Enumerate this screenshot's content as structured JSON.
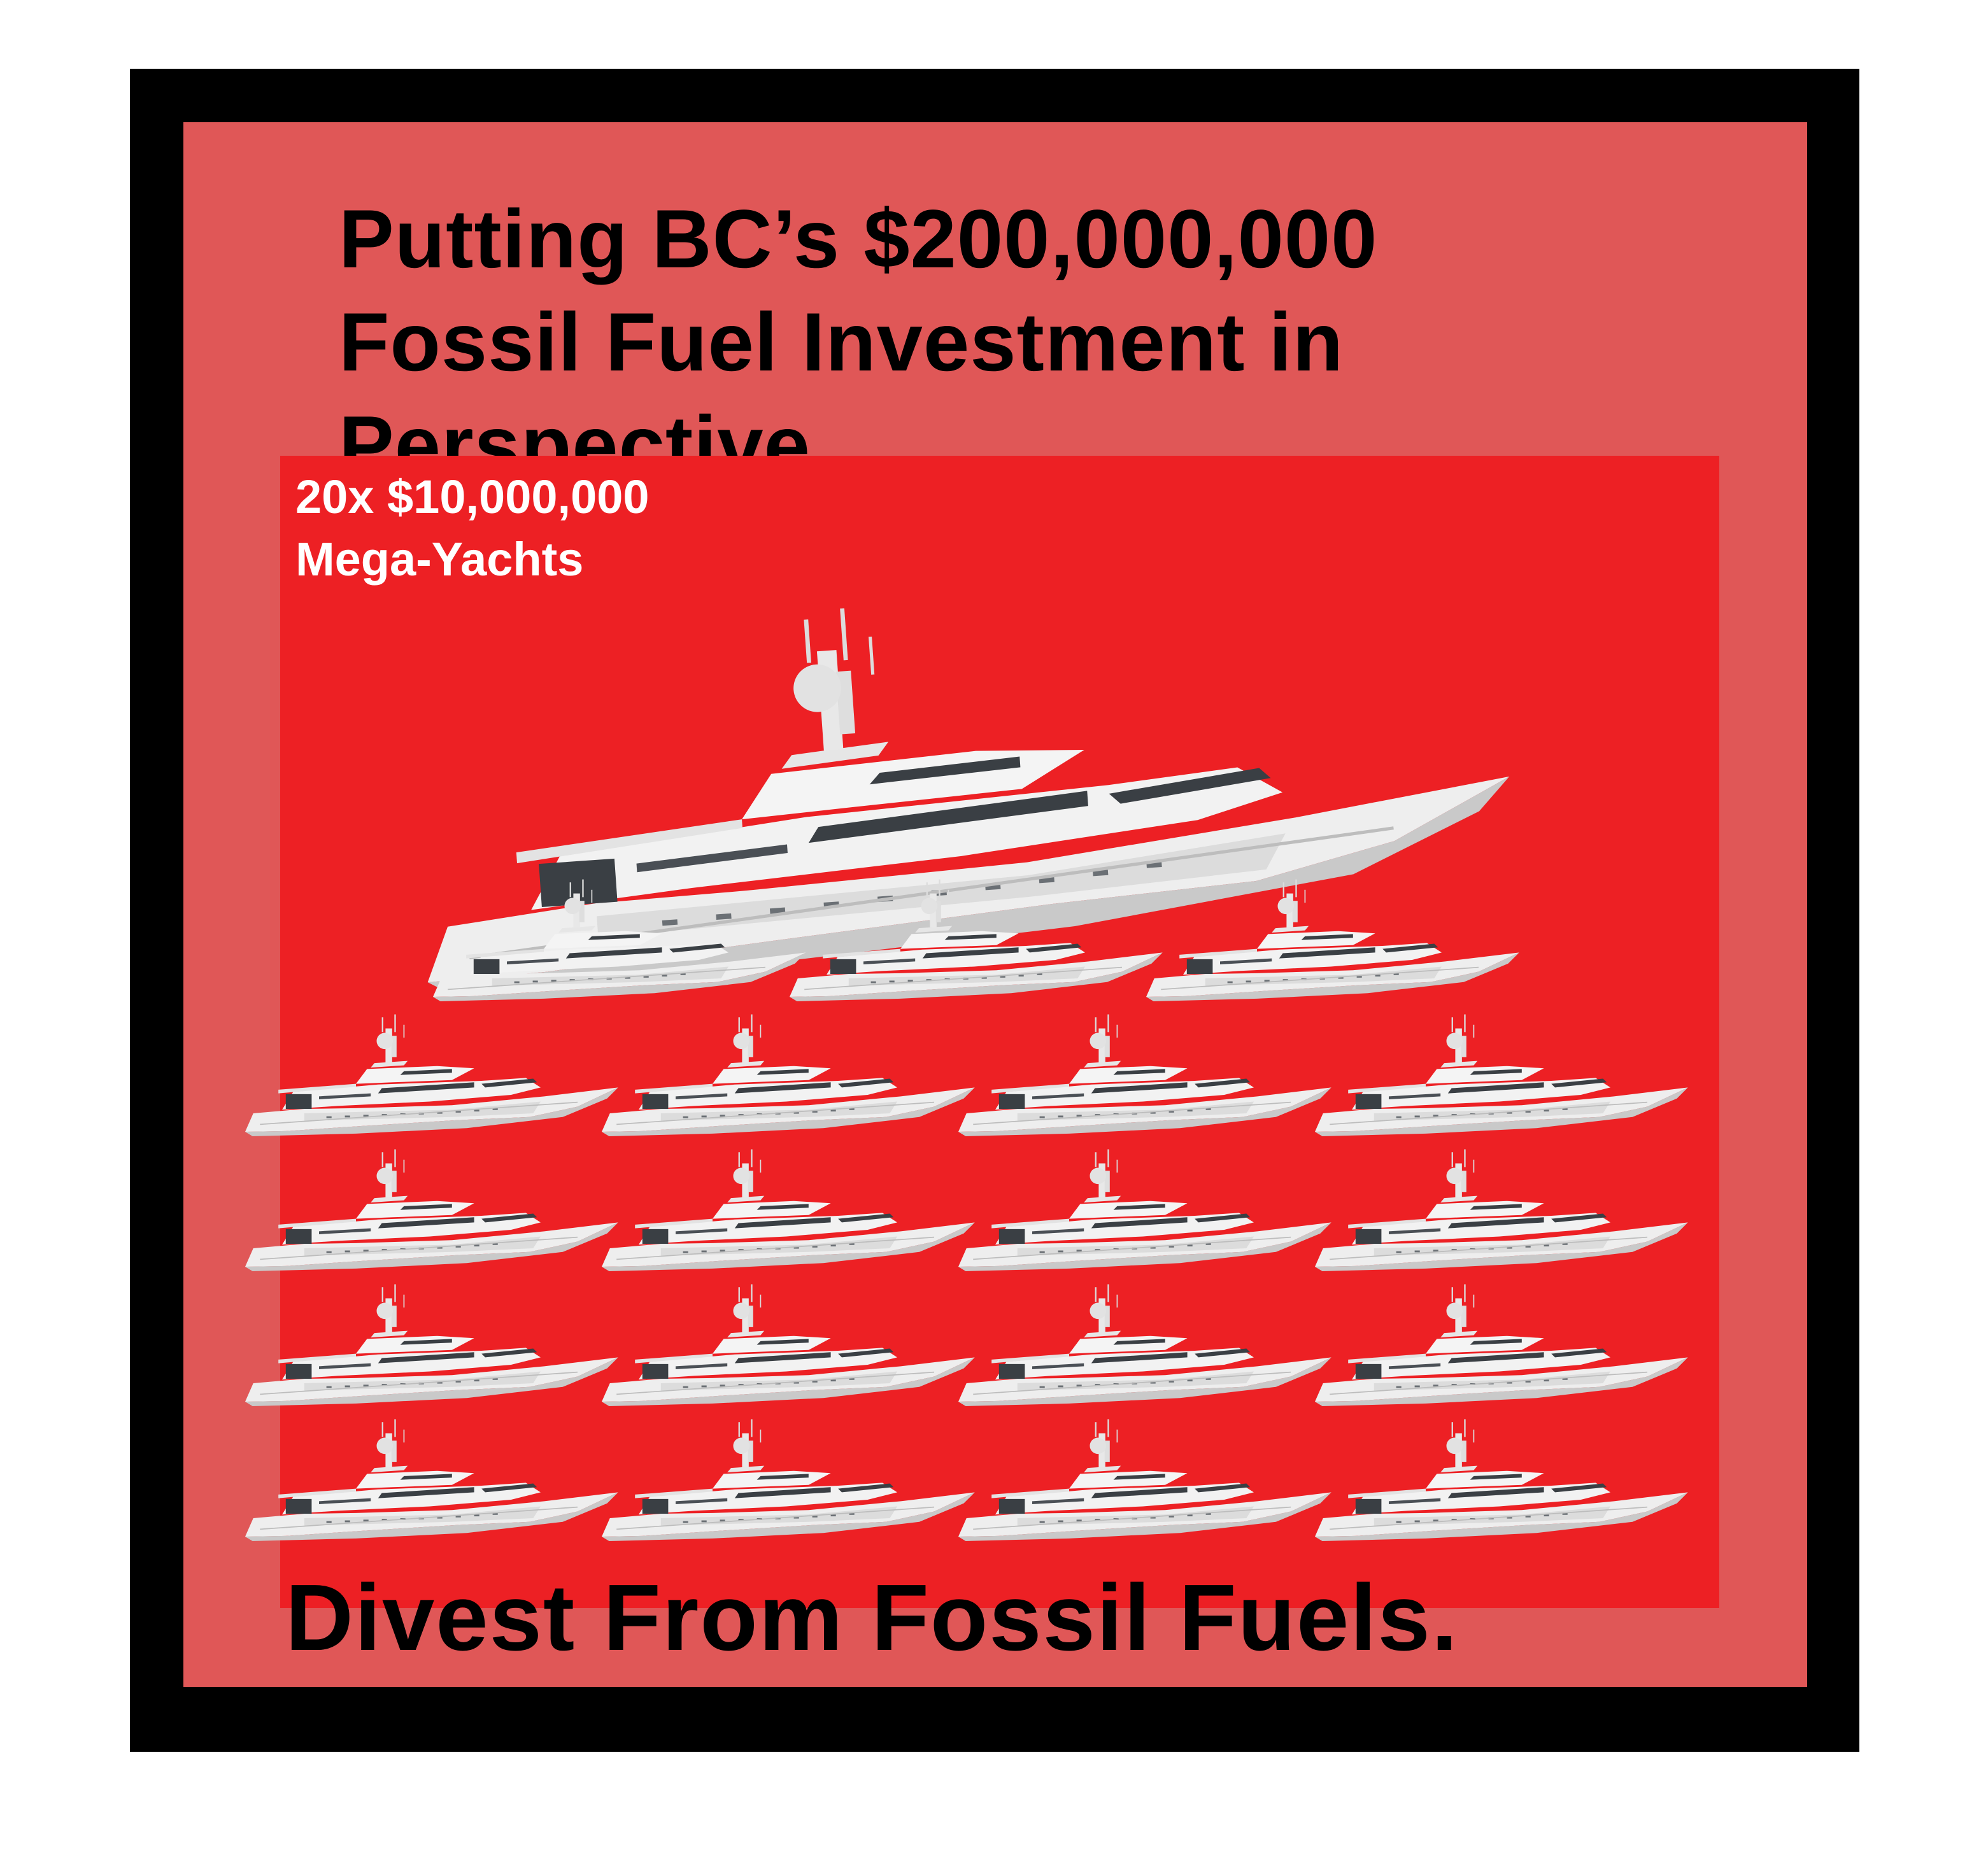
{
  "poster": {
    "headline": {
      "line1": "Putting BC’s $200,000,000",
      "line2": "Fossil Fuel Investment in",
      "line3": "Perspective."
    },
    "count_label": {
      "line1": "20x $10,000,000",
      "line2": "Mega-Yachts"
    },
    "tagline": "Divest From Fossil Fuels.",
    "small_yacht_count": 20
  },
  "colors": {
    "frame": "#000000",
    "panel": "#e05757",
    "scene": "#ed2024",
    "hull": "#eeeeee",
    "hull_shade": "#cfcfcf",
    "windows": "#3a3f44",
    "text_dark": "#000000",
    "text_light": "#ffffff"
  },
  "icons": {
    "yacht": "mega-yacht-icon"
  }
}
